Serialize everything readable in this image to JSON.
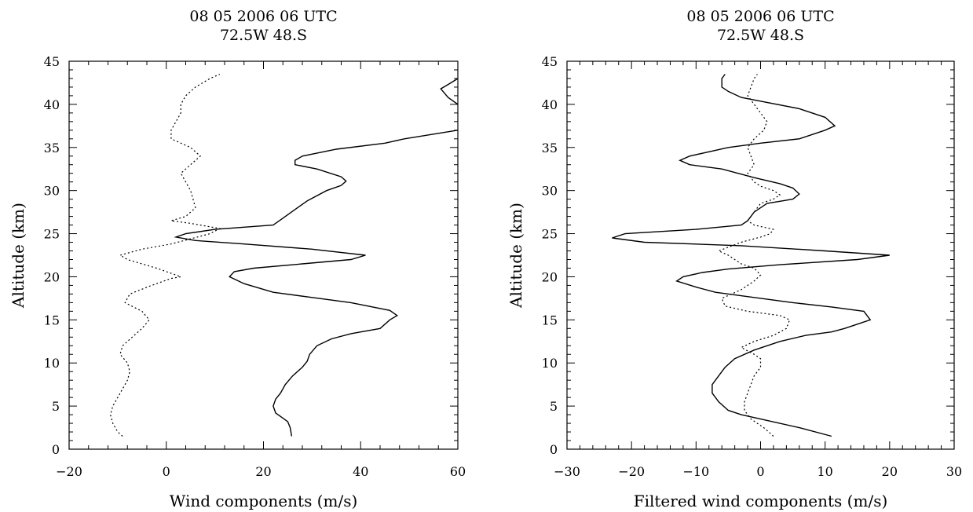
{
  "chart_data": [
    {
      "type": "line",
      "title": [
        "08 05 2006  06 UTC",
        "72.5W 48.S"
      ],
      "xlabel": "Wind components (m/s)",
      "ylabel": "Altitude (km)",
      "xlim": [
        -20,
        60
      ],
      "ylim": [
        0,
        45
      ],
      "xticks": [
        -20,
        0,
        20,
        40,
        60
      ],
      "yticks": [
        0,
        5,
        10,
        15,
        20,
        25,
        30,
        35,
        40,
        45
      ],
      "grid": false,
      "series": [
        {
          "style": "solid",
          "points": [
            [
              25.8,
              1.5
            ],
            [
              25.5,
              2.5
            ],
            [
              25,
              3.2
            ],
            [
              23.5,
              3.8
            ],
            [
              22.5,
              4.2
            ],
            [
              22,
              5
            ],
            [
              22.5,
              5.8
            ],
            [
              23.5,
              6.5
            ],
            [
              24.5,
              7.5
            ],
            [
              26,
              8.5
            ],
            [
              28,
              9.5
            ],
            [
              29,
              10.2
            ],
            [
              29.5,
              11
            ],
            [
              31,
              12
            ],
            [
              34,
              12.8
            ],
            [
              38,
              13.4
            ],
            [
              44,
              14
            ],
            [
              46,
              15
            ],
            [
              47.5,
              15.5
            ],
            [
              46,
              16.1
            ],
            [
              38,
              17
            ],
            [
              30,
              17.6
            ],
            [
              22,
              18.2
            ],
            [
              16,
              19.2
            ],
            [
              13,
              20
            ],
            [
              14,
              20.6
            ],
            [
              18,
              21
            ],
            [
              28,
              21.5
            ],
            [
              38,
              22
            ],
            [
              41,
              22.5
            ],
            [
              30,
              23.2
            ],
            [
              16,
              23.8
            ],
            [
              6,
              24.2
            ],
            [
              2,
              24.6
            ],
            [
              4,
              25
            ],
            [
              10,
              25.5
            ],
            [
              22,
              26
            ],
            [
              24,
              26.8
            ],
            [
              27,
              28
            ],
            [
              29,
              28.8
            ],
            [
              33,
              30
            ],
            [
              36,
              30.6
            ],
            [
              37,
              31.1
            ],
            [
              36,
              31.6
            ],
            [
              31,
              32.5
            ],
            [
              26.5,
              33
            ],
            [
              26.5,
              33.5
            ],
            [
              28,
              34
            ],
            [
              35,
              34.8
            ],
            [
              45,
              35.5
            ],
            [
              49,
              36
            ],
            [
              60,
              37
            ]
          ]
        },
        {
          "style": "solid",
          "points": [
            [
              60,
              40
            ],
            [
              58,
              40.8
            ],
            [
              56.5,
              41.8
            ],
            [
              58,
              42.3
            ],
            [
              60,
              43
            ]
          ]
        },
        {
          "style": "dotted",
          "points": [
            [
              -9,
              1.5
            ],
            [
              -10,
              2
            ],
            [
              -11,
              3
            ],
            [
              -11.5,
              4
            ],
            [
              -11,
              5
            ],
            [
              -10,
              6
            ],
            [
              -9,
              7
            ],
            [
              -8,
              8
            ],
            [
              -7.5,
              9
            ],
            [
              -8,
              10
            ],
            [
              -9.5,
              11
            ],
            [
              -9,
              12
            ],
            [
              -7,
              13
            ],
            [
              -5,
              14
            ],
            [
              -3.5,
              15
            ],
            [
              -5,
              16
            ],
            [
              -8.5,
              17
            ],
            [
              -7.5,
              18
            ],
            [
              -3,
              19
            ],
            [
              1,
              19.8
            ],
            [
              3,
              20
            ],
            [
              -2,
              21
            ],
            [
              -5,
              21.5
            ],
            [
              -8,
              22
            ],
            [
              -9.5,
              22.5
            ],
            [
              -5,
              23.2
            ],
            [
              1,
              23.8
            ],
            [
              5,
              24.4
            ],
            [
              9,
              25
            ],
            [
              11,
              25.6
            ],
            [
              5,
              26.2
            ],
            [
              1,
              26.5
            ],
            [
              4,
              27
            ],
            [
              6,
              28
            ],
            [
              5.5,
              29
            ],
            [
              5,
              30
            ],
            [
              4,
              31
            ],
            [
              3,
              32
            ],
            [
              5,
              33
            ],
            [
              7,
              34
            ],
            [
              5,
              35
            ],
            [
              3,
              35.5
            ],
            [
              1,
              36
            ],
            [
              1,
              37
            ],
            [
              2,
              38
            ],
            [
              3,
              39
            ],
            [
              3,
              40
            ],
            [
              4,
              41
            ],
            [
              6,
              42
            ],
            [
              9,
              43
            ],
            [
              11,
              43.5
            ]
          ]
        }
      ]
    },
    {
      "type": "line",
      "title": [
        "08 05 2006  06 UTC",
        "72.5W 48.S"
      ],
      "xlabel": "Filtered wind components (m/s)",
      "ylabel": "Altitude (km)",
      "xlim": [
        -30,
        30
      ],
      "ylim": [
        0,
        45
      ],
      "xticks": [
        -30,
        -20,
        -10,
        0,
        10,
        20,
        30
      ],
      "yticks": [
        0,
        5,
        10,
        15,
        20,
        25,
        30,
        35,
        40,
        45
      ],
      "grid": false,
      "series": [
        {
          "style": "solid",
          "points": [
            [
              11,
              1.5
            ],
            [
              6,
              2.5
            ],
            [
              0,
              3.5
            ],
            [
              -3,
              4
            ],
            [
              -5,
              4.5
            ],
            [
              -6.5,
              5.5
            ],
            [
              -7.5,
              6.5
            ],
            [
              -7.5,
              7.5
            ],
            [
              -6.5,
              8.5
            ],
            [
              -5.5,
              9.5
            ],
            [
              -4,
              10.5
            ],
            [
              -1,
              11.5
            ],
            [
              3,
              12.5
            ],
            [
              7,
              13.2
            ],
            [
              11,
              13.6
            ],
            [
              13,
              14
            ],
            [
              15,
              14.5
            ],
            [
              17,
              15
            ],
            [
              16,
              16
            ],
            [
              11,
              16.5
            ],
            [
              5,
              17
            ],
            [
              -1,
              17.6
            ],
            [
              -7,
              18.2
            ],
            [
              -10,
              18.8
            ],
            [
              -13,
              19.5
            ],
            [
              -12,
              20
            ],
            [
              -9,
              20.5
            ],
            [
              -5,
              20.9
            ],
            [
              3,
              21.4
            ],
            [
              15,
              22
            ],
            [
              20,
              22.5
            ],
            [
              10,
              23
            ],
            [
              -3,
              23.6
            ],
            [
              -18,
              24
            ],
            [
              -23,
              24.5
            ],
            [
              -21,
              25
            ],
            [
              -10,
              25.5
            ],
            [
              -3,
              26
            ],
            [
              -2,
              26.5
            ],
            [
              -1,
              27.5
            ],
            [
              1,
              28.5
            ],
            [
              5,
              29
            ],
            [
              6,
              29.6
            ],
            [
              5,
              30.3
            ],
            [
              3,
              30.8
            ],
            [
              -1,
              31.5
            ],
            [
              -6,
              32.5
            ],
            [
              -11,
              33
            ],
            [
              -12.5,
              33.5
            ],
            [
              -11,
              34
            ],
            [
              -5,
              35
            ],
            [
              0,
              35.5
            ],
            [
              6,
              36
            ],
            [
              10,
              37
            ],
            [
              11.5,
              37.5
            ],
            [
              10,
              38.5
            ],
            [
              6,
              39.5
            ],
            [
              -3,
              40.8
            ],
            [
              -5,
              41.5
            ],
            [
              -6,
              42
            ],
            [
              -6,
              43
            ],
            [
              -5.5,
              43.5
            ]
          ]
        },
        {
          "style": "dotted",
          "points": [
            [
              2,
              1.5
            ],
            [
              0.5,
              2.5
            ],
            [
              -1.5,
              3.5
            ],
            [
              -2.5,
              4.5
            ],
            [
              -2.5,
              5.5
            ],
            [
              -2,
              6.5
            ],
            [
              -1.5,
              7.5
            ],
            [
              -1,
              8.5
            ],
            [
              0,
              9.5
            ],
            [
              0,
              10.5
            ],
            [
              -1,
              11
            ],
            [
              -3,
              11.8
            ],
            [
              -1,
              12.5
            ],
            [
              2,
              13.2
            ],
            [
              4,
              14
            ],
            [
              4.5,
              15
            ],
            [
              3,
              15.5
            ],
            [
              -2,
              16
            ],
            [
              -5.5,
              16.6
            ],
            [
              -6,
              17.5
            ],
            [
              -3,
              18.5
            ],
            [
              -1,
              19.5
            ],
            [
              0,
              20.2
            ],
            [
              -1,
              21
            ],
            [
              -3,
              21.5
            ],
            [
              -5,
              22.5
            ],
            [
              -6.5,
              23
            ],
            [
              -3,
              24
            ],
            [
              0,
              24.6
            ],
            [
              1.5,
              25
            ],
            [
              2,
              25.5
            ],
            [
              -1,
              26
            ],
            [
              -2,
              26.5
            ],
            [
              -1,
              27.5
            ],
            [
              0,
              28.5
            ],
            [
              2,
              29
            ],
            [
              3,
              29.5
            ],
            [
              2,
              30
            ],
            [
              0,
              30.5
            ],
            [
              -1,
              31
            ],
            [
              -2,
              32
            ],
            [
              -1,
              33
            ],
            [
              -1.5,
              34
            ],
            [
              -2,
              35
            ],
            [
              -1,
              36
            ],
            [
              0.5,
              37
            ],
            [
              1,
              38
            ],
            [
              0,
              39
            ],
            [
              -1,
              40
            ],
            [
              -2,
              41
            ],
            [
              -1.5,
              42
            ],
            [
              -1,
              43
            ],
            [
              -0.5,
              43.5
            ]
          ]
        }
      ]
    }
  ]
}
